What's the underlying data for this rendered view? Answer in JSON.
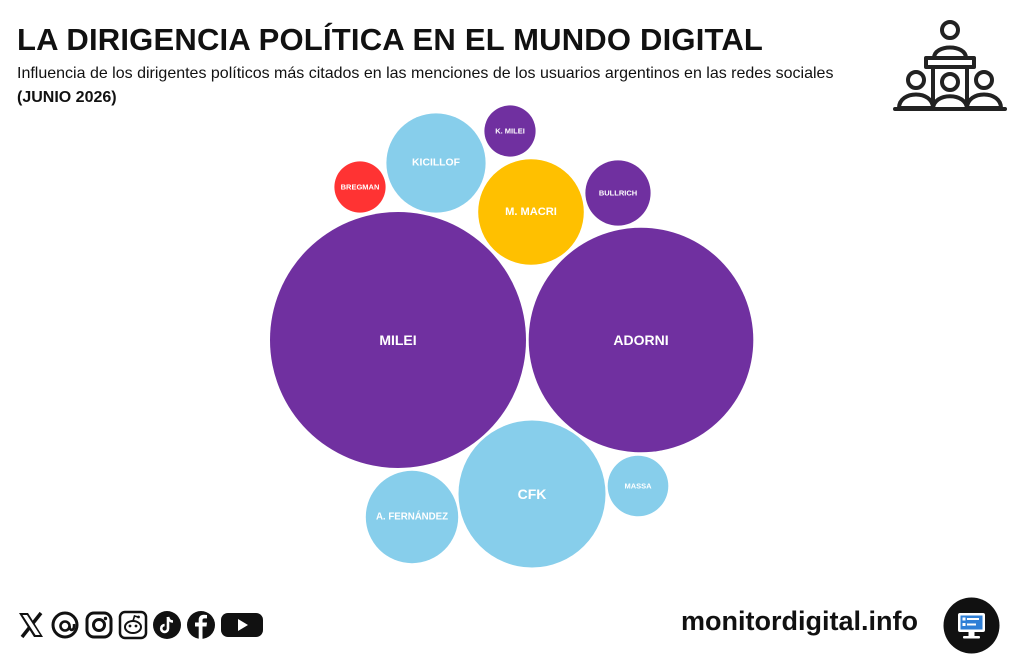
{
  "header": {
    "title": "LA DIRIGENCIA POLÍTICA EN EL MUNDO DIGITAL",
    "subtitle": "Influencia de los dirigentes políticos más citados en las menciones de los usuarios argentinos en las redes sociales",
    "period": "(JUNIO 2026)",
    "icon": "podium-audience-icon"
  },
  "colors": {
    "violeta": "#7030A0",
    "celeste": "#87CEEB",
    "amarillo": "#FFC000",
    "rojo": "#FF3333"
  },
  "chart_data": {
    "type": "bubble",
    "title": "LA DIRIGENCIA POLÍTICA EN EL MUNDO DIGITAL",
    "subtitle": "Influencia de los dirigentes políticos más citados en las menciones de los usuarios argentinos en las redes sociales",
    "period": "(JUNIO 2026)",
    "legend": "none",
    "value_note": "relative bubble area (MILEI = 100), estimated from bubble size",
    "bubbles": [
      {
        "label": "MILEI",
        "value": 100,
        "color": "#7030A0"
      },
      {
        "label": "ADORNI",
        "value": 77,
        "color": "#7030A0"
      },
      {
        "label": "CFK",
        "value": 33,
        "color": "#87CEEB"
      },
      {
        "label": "KICILLOF",
        "value": 15,
        "color": "#87CEEB"
      },
      {
        "label": "M. MACRI",
        "value": 17,
        "color": "#FFC000"
      },
      {
        "label": "A. FERNÁNDEZ",
        "value": 13,
        "color": "#87CEEB"
      },
      {
        "label": "MASSA",
        "value": 5.6,
        "color": "#87CEEB"
      },
      {
        "label": "BULLRICH",
        "value": 6.5,
        "color": "#7030A0"
      },
      {
        "label": "K. MILEI",
        "value": 4,
        "color": "#7030A0"
      },
      {
        "label": "BREGMAN",
        "value": 4,
        "color": "#FF3333"
      }
    ]
  },
  "footer": {
    "socials": [
      "x-icon",
      "threads-icon",
      "instagram-icon",
      "reddit-icon",
      "tiktok-icon",
      "facebook-icon",
      "youtube-icon"
    ],
    "site": "monitordigital.info",
    "badge_icon": "monitor-icon"
  }
}
